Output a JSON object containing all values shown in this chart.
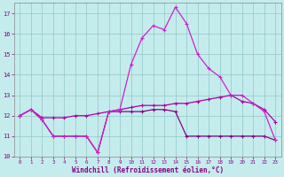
{
  "xlabel": "Windchill (Refroidissement éolien,°C)",
  "xlim": [
    -0.5,
    23.5
  ],
  "ylim": [
    10,
    17.5
  ],
  "yticks": [
    10,
    11,
    12,
    13,
    14,
    15,
    16,
    17
  ],
  "xticks": [
    0,
    1,
    2,
    3,
    4,
    5,
    6,
    7,
    8,
    9,
    10,
    11,
    12,
    13,
    14,
    15,
    16,
    17,
    18,
    19,
    20,
    21,
    22,
    23
  ],
  "bg_color": "#c5eced",
  "grid_color": "#99cccc",
  "line_color1": "#aa00aa",
  "line_color2": "#880088",
  "line_color3": "#cc22cc",
  "line1_x": [
    0,
    1,
    2,
    3,
    4,
    5,
    6,
    7,
    8,
    9,
    10,
    11,
    12,
    13,
    14,
    15,
    16,
    17,
    18,
    19,
    20,
    21,
    22,
    23
  ],
  "line1_y": [
    12.0,
    12.3,
    11.8,
    11.0,
    11.0,
    11.0,
    11.0,
    10.2,
    12.2,
    12.2,
    12.2,
    12.2,
    12.3,
    12.3,
    12.2,
    11.0,
    11.0,
    11.0,
    11.0,
    11.0,
    11.0,
    11.0,
    11.0,
    10.8
  ],
  "line2_x": [
    0,
    1,
    2,
    3,
    4,
    5,
    6,
    7,
    8,
    9,
    10,
    11,
    12,
    13,
    14,
    15,
    16,
    17,
    18,
    19,
    20,
    21,
    22,
    23
  ],
  "line2_y": [
    12.0,
    12.3,
    11.9,
    11.9,
    11.9,
    12.0,
    12.0,
    12.1,
    12.2,
    12.3,
    12.4,
    12.5,
    12.5,
    12.5,
    12.6,
    12.6,
    12.7,
    12.8,
    12.9,
    13.0,
    12.7,
    12.6,
    12.3,
    11.7
  ],
  "line3_x": [
    0,
    1,
    2,
    3,
    4,
    5,
    6,
    7,
    8,
    9,
    10,
    11,
    12,
    13,
    14,
    15,
    16,
    17,
    18,
    19,
    20,
    21,
    22,
    23
  ],
  "line3_y": [
    12.0,
    12.3,
    11.8,
    11.0,
    11.0,
    11.0,
    11.0,
    10.2,
    12.2,
    12.3,
    14.5,
    15.8,
    16.4,
    16.2,
    17.3,
    16.5,
    15.0,
    14.3,
    13.9,
    13.0,
    13.0,
    12.6,
    12.2,
    10.8
  ],
  "markersize": 2.5,
  "linewidth": 0.9
}
